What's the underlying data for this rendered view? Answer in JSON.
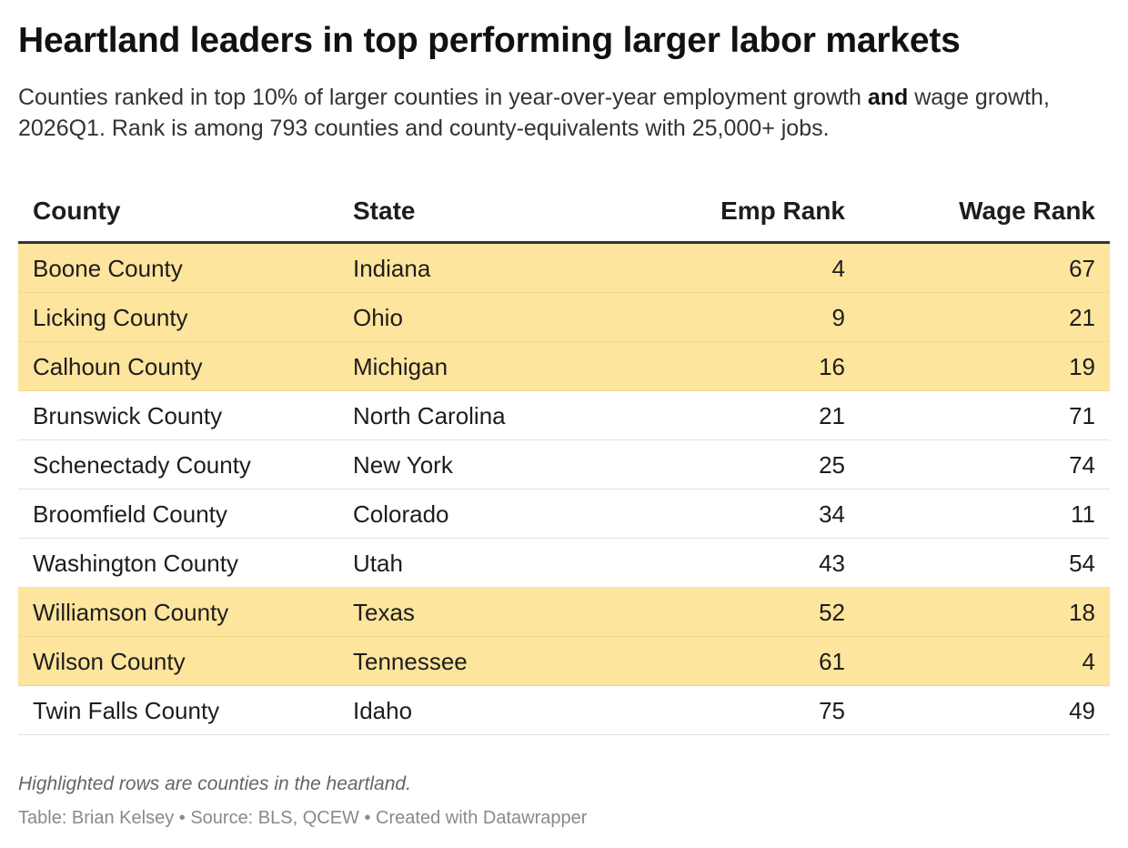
{
  "chart_data": {
    "type": "table",
    "title": "Heartland leaders in top performing larger labor markets",
    "subtitle_before": "Counties ranked in top 10% of larger counties in year-over-year employment growth ",
    "subtitle_bold": "and",
    "subtitle_after": " wage growth, 2026Q1. Rank is among 793 counties and county-equivalents with 25,000+ jobs.",
    "columns": [
      "County",
      "State",
      "Emp Rank",
      "Wage Rank"
    ],
    "rows": [
      {
        "county": "Boone County",
        "state": "Indiana",
        "emp_rank": "4",
        "wage_rank": "67",
        "highlight": true
      },
      {
        "county": "Licking County",
        "state": "Ohio",
        "emp_rank": "9",
        "wage_rank": "21",
        "highlight": true
      },
      {
        "county": "Calhoun County",
        "state": "Michigan",
        "emp_rank": "16",
        "wage_rank": "19",
        "highlight": true
      },
      {
        "county": "Brunswick County",
        "state": "North Carolina",
        "emp_rank": "21",
        "wage_rank": "71",
        "highlight": false
      },
      {
        "county": "Schenectady County",
        "state": "New York",
        "emp_rank": "25",
        "wage_rank": "74",
        "highlight": false
      },
      {
        "county": "Broomfield County",
        "state": "Colorado",
        "emp_rank": "34",
        "wage_rank": "11",
        "highlight": false
      },
      {
        "county": "Washington County",
        "state": "Utah",
        "emp_rank": "43",
        "wage_rank": "54",
        "highlight": false
      },
      {
        "county": "Williamson County",
        "state": "Texas",
        "emp_rank": "52",
        "wage_rank": "18",
        "highlight": true
      },
      {
        "county": "Wilson County",
        "state": "Tennessee",
        "emp_rank": "61",
        "wage_rank": "4",
        "highlight": true
      },
      {
        "county": "Twin Falls County",
        "state": "Idaho",
        "emp_rank": "75",
        "wage_rank": "49",
        "highlight": false
      }
    ],
    "highlight_color": "#fee59d",
    "note": "Highlighted rows are counties in the heartland.",
    "source": "Table: Brian Kelsey • Source: BLS, QCEW • Created with Datawrapper"
  }
}
